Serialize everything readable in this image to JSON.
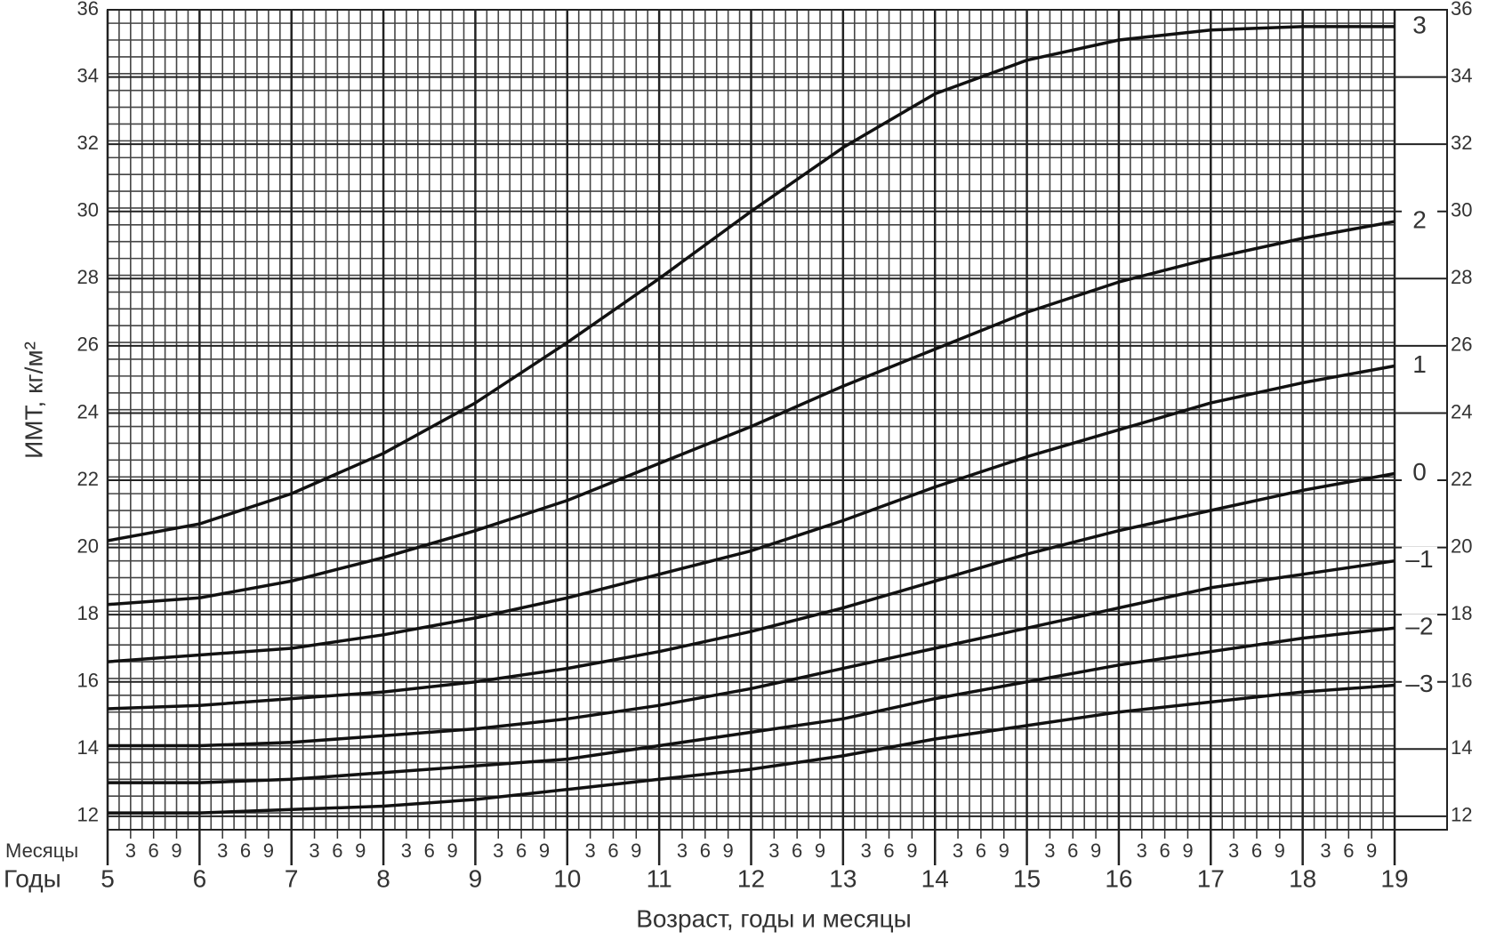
{
  "chart_data": {
    "type": "line",
    "x_label": "Возраст, годы и месяцы",
    "y_label": "ИМТ, кг/м²",
    "months_label": "Месяцы",
    "years_label": "Годы",
    "x": [
      5,
      6,
      7,
      8,
      9,
      10,
      11,
      12,
      13,
      14,
      15,
      16,
      17,
      18,
      19
    ],
    "xlim": [
      5,
      19
    ],
    "xticks": [
      5,
      6,
      7,
      8,
      9,
      10,
      11,
      12,
      13,
      14,
      15,
      16,
      17,
      18,
      19
    ],
    "xticks_minor": [
      {
        "value": 5.25,
        "label": "3"
      },
      {
        "value": 5.5,
        "label": "6"
      },
      {
        "value": 5.75,
        "label": "9"
      },
      {
        "value": 6.25,
        "label": "3"
      },
      {
        "value": 6.5,
        "label": "6"
      },
      {
        "value": 6.75,
        "label": "9"
      },
      {
        "value": 7.25,
        "label": "3"
      },
      {
        "value": 7.5,
        "label": "6"
      },
      {
        "value": 7.75,
        "label": "9"
      },
      {
        "value": 8.25,
        "label": "3"
      },
      {
        "value": 8.5,
        "label": "6"
      },
      {
        "value": 8.75,
        "label": "9"
      },
      {
        "value": 9.25,
        "label": "3"
      },
      {
        "value": 9.5,
        "label": "6"
      },
      {
        "value": 9.75,
        "label": "9"
      },
      {
        "value": 10.25,
        "label": "3"
      },
      {
        "value": 10.5,
        "label": "6"
      },
      {
        "value": 10.75,
        "label": "9"
      },
      {
        "value": 11.25,
        "label": "3"
      },
      {
        "value": 11.5,
        "label": "6"
      },
      {
        "value": 11.75,
        "label": "9"
      },
      {
        "value": 12.25,
        "label": "3"
      },
      {
        "value": 12.5,
        "label": "6"
      },
      {
        "value": 12.75,
        "label": "9"
      },
      {
        "value": 13.25,
        "label": "3"
      },
      {
        "value": 13.5,
        "label": "6"
      },
      {
        "value": 13.75,
        "label": "9"
      },
      {
        "value": 14.25,
        "label": "3"
      },
      {
        "value": 14.5,
        "label": "6"
      },
      {
        "value": 14.75,
        "label": "9"
      },
      {
        "value": 15.25,
        "label": "3"
      },
      {
        "value": 15.5,
        "label": "6"
      },
      {
        "value": 15.75,
        "label": "9"
      },
      {
        "value": 16.25,
        "label": "3"
      },
      {
        "value": 16.5,
        "label": "6"
      },
      {
        "value": 16.75,
        "label": "9"
      },
      {
        "value": 17.25,
        "label": "3"
      },
      {
        "value": 17.5,
        "label": "6"
      },
      {
        "value": 17.75,
        "label": "9"
      },
      {
        "value": 18.25,
        "label": "3"
      },
      {
        "value": 18.5,
        "label": "6"
      },
      {
        "value": 18.75,
        "label": "9"
      }
    ],
    "ylim": [
      11.6,
      36
    ],
    "yticks": [
      12,
      14,
      16,
      18,
      20,
      22,
      24,
      26,
      28,
      30,
      32,
      34,
      36
    ],
    "grid": true,
    "series": [
      {
        "name": "3",
        "color": "#111111",
        "values": [
          20.2,
          20.7,
          21.6,
          22.8,
          24.3,
          26.1,
          28.0,
          30.0,
          31.9,
          33.5,
          34.5,
          35.1,
          35.4,
          35.5,
          35.5
        ]
      },
      {
        "name": "2",
        "color": "#111111",
        "values": [
          18.3,
          18.5,
          19.0,
          19.7,
          20.5,
          21.4,
          22.5,
          23.6,
          24.8,
          25.9,
          27.0,
          27.9,
          28.6,
          29.2,
          29.7
        ]
      },
      {
        "name": "1",
        "color": "#111111",
        "values": [
          16.6,
          16.8,
          17.0,
          17.4,
          17.9,
          18.5,
          19.2,
          19.9,
          20.8,
          21.8,
          22.7,
          23.5,
          24.3,
          24.9,
          25.4
        ]
      },
      {
        "name": "0",
        "color": "#111111",
        "values": [
          15.2,
          15.3,
          15.5,
          15.7,
          16.0,
          16.4,
          16.9,
          17.5,
          18.2,
          19.0,
          19.8,
          20.5,
          21.1,
          21.7,
          22.2
        ]
      },
      {
        "name": "–1",
        "color": "#111111",
        "values": [
          14.1,
          14.1,
          14.2,
          14.4,
          14.6,
          14.9,
          15.3,
          15.8,
          16.4,
          17.0,
          17.6,
          18.2,
          18.8,
          19.2,
          19.6
        ]
      },
      {
        "name": "–2",
        "color": "#111111",
        "values": [
          13.0,
          13.0,
          13.1,
          13.3,
          13.5,
          13.7,
          14.1,
          14.5,
          14.9,
          15.5,
          16.0,
          16.5,
          16.9,
          17.3,
          17.6
        ]
      },
      {
        "name": "–3",
        "color": "#111111",
        "values": [
          12.1,
          12.1,
          12.2,
          12.3,
          12.5,
          12.8,
          13.1,
          13.4,
          13.8,
          14.3,
          14.7,
          15.1,
          15.4,
          15.7,
          15.9
        ]
      }
    ]
  }
}
